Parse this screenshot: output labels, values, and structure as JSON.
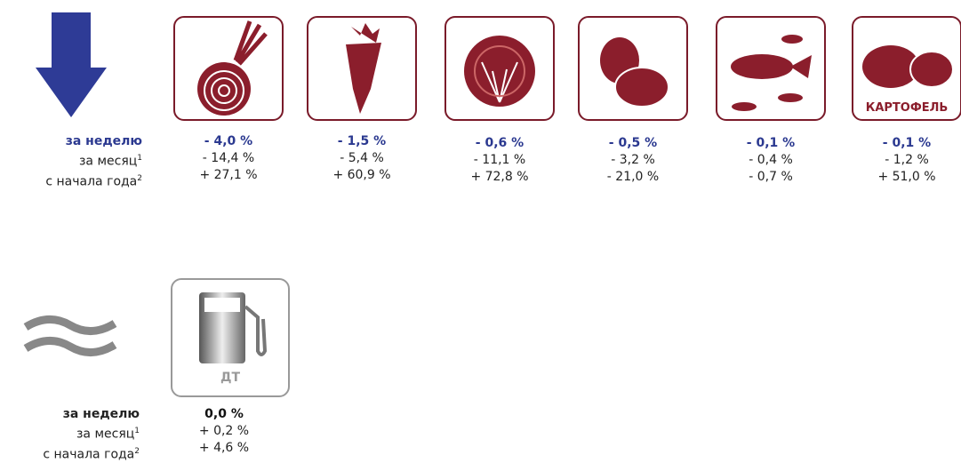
{
  "groups": [
    {
      "labels": {
        "week": "за неделю",
        "month": "за месяц",
        "month_note": "1",
        "ytd": "с начала года",
        "ytd_note": "2"
      },
      "items": [
        {
          "week": "- 4,0 %",
          "month": "- 14,4 %",
          "ytd": "+ 27,1 %"
        },
        {
          "week": "- 1,5 %",
          "month": "- 5,4 %",
          "ytd": "+ 60,9 %"
        },
        {
          "week": "- 0,6 %",
          "month": "- 11,1 %",
          "ytd": "+ 72,8 %"
        },
        {
          "week": "- 0,5 %",
          "month": "- 3,2 %",
          "ytd": "- 21,0 %"
        },
        {
          "week": "- 0,1 %",
          "month": "- 0,4 %",
          "ytd": "- 0,7 %"
        },
        {
          "icon_label": "КАРТОФЕЛЬ",
          "week": "- 0,1 %",
          "month": "- 1,2 %",
          "ytd": "+ 51,0 %"
        }
      ]
    },
    {
      "labels": {
        "week": "за неделю",
        "month": "за месяц",
        "month_note": "1",
        "ytd": "с начала года",
        "ytd_note": "2"
      },
      "items": [
        {
          "icon_label": "ДТ",
          "week": "0,0 %",
          "month": "+ 0,2 %",
          "ytd": "+ 4,6 %"
        }
      ]
    }
  ]
}
